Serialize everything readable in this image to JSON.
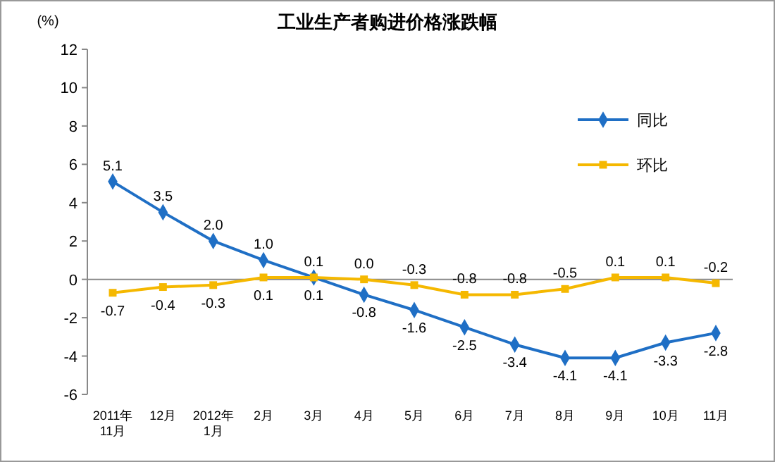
{
  "chart_data": {
    "type": "line",
    "title": "工业生产者购进价格涨跌幅",
    "ylabel": "(%)",
    "categories": [
      "2011年\n11月",
      "12月",
      "2012年\n1月",
      "2月",
      "3月",
      "4月",
      "5月",
      "6月",
      "7月",
      "8月",
      "9月",
      "10月",
      "11月"
    ],
    "series": [
      {
        "name": "同比",
        "color": "#1f6fc5",
        "marker": "diamond",
        "values": [
          5.1,
          3.5,
          2.0,
          1.0,
          0.1,
          -0.8,
          -1.6,
          -2.5,
          -3.4,
          -4.1,
          -4.1,
          -3.3,
          -2.8
        ],
        "value_labels": [
          "5.1",
          "3.5",
          "2.0",
          "1.0",
          "0.1",
          "-0.8",
          "-1.6",
          "-2.5",
          "-3.4",
          "-4.1",
          "-4.1",
          "-3.3",
          "-2.8"
        ]
      },
      {
        "name": "环比",
        "color": "#f5b800",
        "marker": "square",
        "values": [
          -0.7,
          -0.4,
          -0.3,
          0.1,
          0.1,
          0.0,
          -0.3,
          -0.8,
          -0.8,
          -0.5,
          0.1,
          0.1,
          -0.2
        ],
        "value_labels": [
          "-0.7",
          "-0.4",
          "-0.3",
          "0.1",
          "0.1",
          "0.0",
          "-0.3",
          "-0.8",
          "-0.8",
          "-0.5",
          "0.1",
          "0.1",
          "-0.2"
        ]
      }
    ],
    "ylim": [
      -6,
      12
    ],
    "yticks": [
      -6,
      -4,
      -2,
      0,
      2,
      4,
      6,
      8,
      10,
      12
    ],
    "legend": "right"
  }
}
